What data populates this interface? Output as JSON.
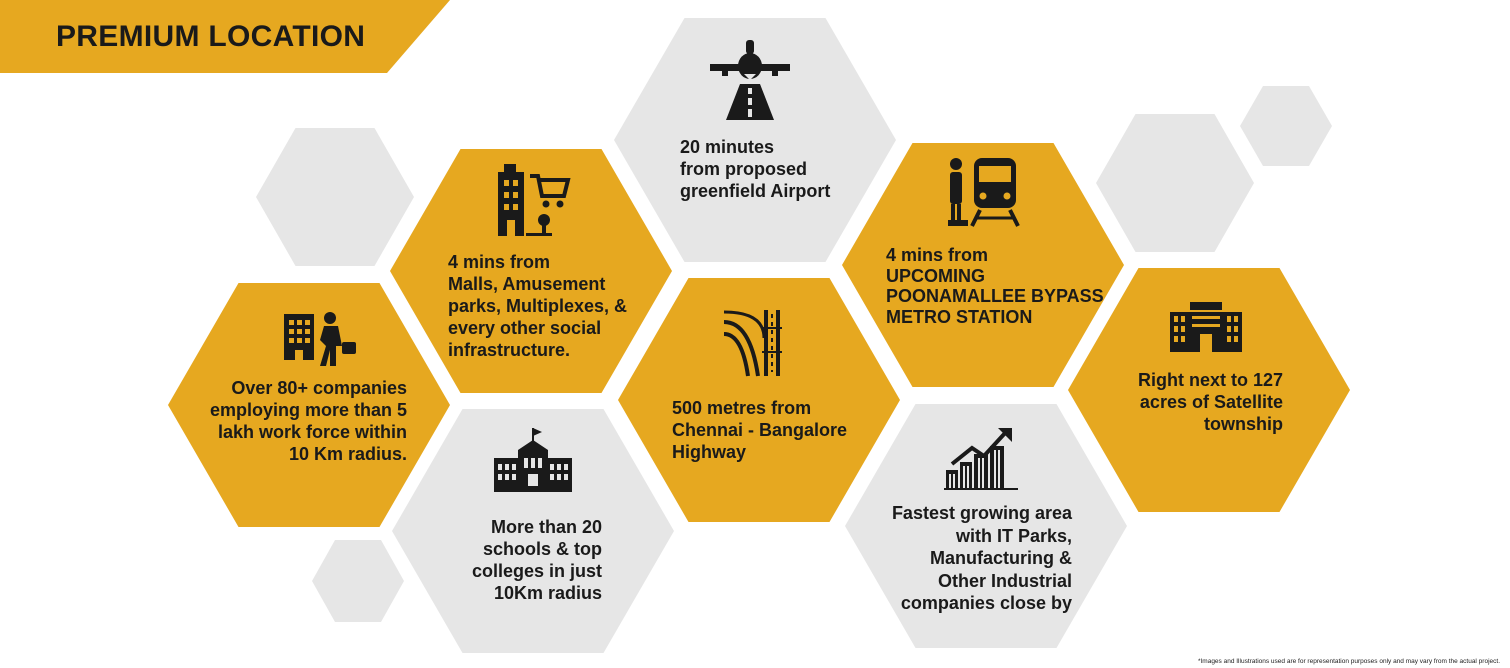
{
  "header": {
    "title": "PREMIUM LOCATION"
  },
  "cells": {
    "airport": {
      "icon": "airplane-runway-icon",
      "lines": [
        "20 minutes",
        "from proposed",
        "greenfield Airport"
      ]
    },
    "malls": {
      "icon": "shopping-mall-icon",
      "lines": [
        "4 mins from",
        "Malls, Amusement",
        "parks, Multiplexes, &",
        "every other social",
        "infrastructure."
      ]
    },
    "metro": {
      "icon": "metro-train-icon",
      "lines": [
        "4 mins from",
        "UPCOMING",
        "POONAMALLEE BYPASS",
        "METRO STATION"
      ]
    },
    "companies": {
      "icon": "office-worker-icon",
      "lines": [
        "Over 80+ companies",
        "employing more than 5",
        "lakh work force within",
        "10 Km radius."
      ]
    },
    "highway": {
      "icon": "highway-interchange-icon",
      "lines": [
        "500 metres  from",
        "Chennai - Bangalore",
        "Highway"
      ]
    },
    "township": {
      "icon": "township-building-icon",
      "lines": [
        "Right next to 127",
        "acres of Satellite",
        "township"
      ]
    },
    "schools": {
      "icon": "school-building-icon",
      "lines": [
        "More than 20",
        "schools & top",
        "colleges in just",
        "10Km radius"
      ]
    },
    "growth": {
      "icon": "growth-buildings-icon",
      "lines": [
        "Fastest growing area",
        "with IT Parks,",
        "Manufacturing &",
        "Other Industrial",
        "companies close by"
      ]
    }
  },
  "footnote": "*Images and Illustrations used are for representation purposes only and may vary from the actual project.",
  "colors": {
    "accent": "#E6A820",
    "tile": "#E6E6E6",
    "text": "#1a1a1a"
  }
}
